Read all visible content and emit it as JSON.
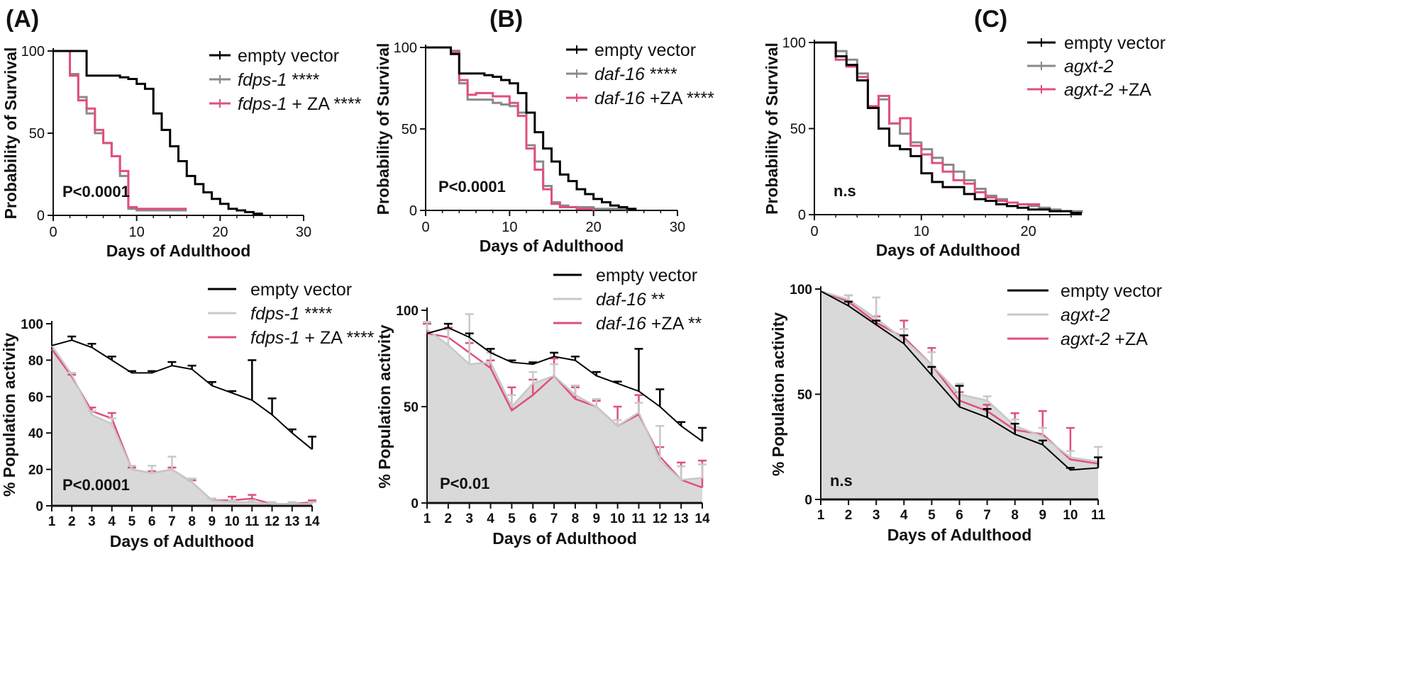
{
  "panels": {
    "A": {
      "label": "(A)"
    },
    "B": {
      "label": "(B)"
    },
    "C": {
      "label": "(C)"
    }
  },
  "colors": {
    "empty_vector": "#000000",
    "rnai": "#8a8a8a",
    "rnai_za": "#e0507a",
    "area_fill": "#d9d9d9",
    "rnai_light": "#c8c8c8"
  },
  "chart_data": [
    {
      "id": "A_top",
      "type": "line",
      "step": true,
      "xlabel": "Days of Adulthood",
      "ylabel": "Probability of Survival",
      "xlim": [
        0,
        30
      ],
      "ylim": [
        0,
        100
      ],
      "xticks": [
        0,
        10,
        20,
        30
      ],
      "yticks": [
        0,
        50,
        100
      ],
      "annotation": "P<0.0001",
      "legend_position": "top-right",
      "legend": [
        {
          "italic": "",
          "text": "empty vector"
        },
        {
          "italic": "fdps-1",
          "text": " ****"
        },
        {
          "italic": "fdps-1",
          "text": " + ZA ****"
        }
      ],
      "series": [
        {
          "x": [
            0,
            2,
            3,
            4,
            5,
            6,
            7,
            8,
            9,
            10,
            11,
            12,
            13,
            14,
            15,
            16,
            17,
            18,
            19,
            20,
            21,
            22,
            23,
            24,
            25
          ],
          "y": [
            100,
            100,
            100,
            85,
            85,
            85,
            85,
            84,
            83,
            80,
            77,
            62,
            52,
            42,
            33,
            24,
            19,
            14,
            10,
            7,
            4,
            3,
            2,
            1,
            0
          ]
        },
        {
          "x": [
            0,
            2,
            3,
            4,
            5,
            6,
            7,
            8,
            9,
            10,
            11,
            12,
            13,
            14,
            15,
            16
          ],
          "y": [
            100,
            86,
            72,
            62,
            50,
            44,
            36,
            24,
            4,
            3,
            3,
            3,
            3,
            3,
            3,
            3
          ]
        },
        {
          "x": [
            0,
            2,
            3,
            4,
            5,
            6,
            7,
            8,
            9,
            10,
            11,
            12,
            13,
            14,
            15,
            16
          ],
          "y": [
            100,
            85,
            70,
            65,
            52,
            44,
            36,
            27,
            5,
            4,
            4,
            4,
            4,
            4,
            4,
            4
          ]
        }
      ]
    },
    {
      "id": "B_top",
      "type": "line",
      "step": true,
      "xlabel": "Days of Adulthood",
      "ylabel": "Probability of Survival",
      "xlim": [
        0,
        30
      ],
      "ylim": [
        0,
        100
      ],
      "xticks": [
        0,
        10,
        20,
        30
      ],
      "yticks": [
        0,
        50,
        100
      ],
      "annotation": "P<0.0001",
      "legend_position": "top-right",
      "legend": [
        {
          "italic": "",
          "text": "empty vector"
        },
        {
          "italic": "daf-16",
          "text": " ****"
        },
        {
          "italic": "daf-16",
          "text": " +ZA ****"
        }
      ],
      "series": [
        {
          "x": [
            0,
            3,
            4,
            5,
            6,
            7,
            8,
            9,
            10,
            11,
            12,
            13,
            14,
            15,
            16,
            17,
            18,
            19,
            20,
            21,
            22,
            23,
            24,
            25
          ],
          "y": [
            100,
            96,
            84,
            84,
            84,
            83,
            82,
            80,
            78,
            72,
            60,
            48,
            38,
            30,
            22,
            18,
            13,
            10,
            7,
            5,
            3,
            2,
            1,
            0
          ]
        },
        {
          "x": [
            0,
            3,
            4,
            5,
            6,
            7,
            8,
            9,
            10,
            11,
            12,
            13,
            14,
            15,
            16,
            17,
            18,
            19,
            20,
            21,
            22,
            23,
            24
          ],
          "y": [
            100,
            98,
            78,
            68,
            68,
            68,
            66,
            65,
            64,
            60,
            40,
            30,
            15,
            5,
            3,
            2,
            2,
            2,
            1,
            1,
            1,
            1,
            0
          ]
        },
        {
          "x": [
            0,
            3,
            4,
            5,
            6,
            7,
            8,
            9,
            10,
            11,
            12,
            13,
            14,
            15,
            16,
            17,
            18,
            19,
            20
          ],
          "y": [
            100,
            97,
            80,
            71,
            72,
            72,
            70,
            70,
            66,
            58,
            38,
            25,
            13,
            4,
            2,
            2,
            1,
            1,
            0
          ]
        }
      ]
    },
    {
      "id": "C_top",
      "type": "line",
      "step": true,
      "xlabel": "Days of Adulthood",
      "ylabel": "Probability of Survival",
      "xlim": [
        0,
        25
      ],
      "ylim": [
        0,
        100
      ],
      "xticks": [
        0,
        10,
        20
      ],
      "yticks": [
        0,
        50,
        100
      ],
      "annotation": "n.s",
      "legend_position": "top-right",
      "legend": [
        {
          "italic": "",
          "text": "empty vector"
        },
        {
          "italic": "agxt-2",
          "text": ""
        },
        {
          "italic": "agxt-2",
          "text": " +ZA"
        }
      ],
      "series": [
        {
          "x": [
            0,
            2,
            3,
            4,
            5,
            6,
            7,
            8,
            9,
            10,
            11,
            12,
            13,
            14,
            15,
            16,
            17,
            18,
            19,
            20,
            21,
            22,
            23,
            24,
            25
          ],
          "y": [
            100,
            92,
            87,
            78,
            62,
            50,
            40,
            38,
            34,
            24,
            19,
            16,
            16,
            12,
            9,
            8,
            6,
            5,
            4,
            3,
            3,
            2,
            2,
            1,
            1
          ]
        },
        {
          "x": [
            0,
            2,
            3,
            4,
            5,
            6,
            7,
            8,
            9,
            10,
            11,
            12,
            13,
            14,
            15,
            16,
            17,
            18,
            19,
            20,
            21,
            22,
            23,
            24,
            25
          ],
          "y": [
            100,
            95,
            90,
            82,
            62,
            67,
            53,
            47,
            42,
            38,
            33,
            29,
            25,
            20,
            15,
            11,
            9,
            7,
            6,
            5,
            4,
            3,
            2,
            2,
            1
          ]
        },
        {
          "x": [
            0,
            2,
            3,
            4,
            5,
            6,
            7,
            8,
            9,
            10,
            11,
            12,
            13,
            14,
            15,
            16,
            17,
            18,
            19,
            20,
            21
          ],
          "y": [
            100,
            90,
            86,
            80,
            63,
            69,
            53,
            56,
            40,
            35,
            30,
            25,
            20,
            18,
            13,
            10,
            8,
            7,
            6,
            6,
            5
          ]
        }
      ]
    },
    {
      "id": "A_bottom",
      "type": "area",
      "xlabel": "Days of Adulthood",
      "ylabel": "% Population activity",
      "xlim": [
        1,
        14
      ],
      "ylim": [
        0,
        100
      ],
      "xticks": [
        1,
        2,
        3,
        4,
        5,
        6,
        7,
        8,
        9,
        10,
        11,
        12,
        13,
        14
      ],
      "yticks": [
        0,
        20,
        40,
        60,
        80,
        100
      ],
      "annotation": "P<0.0001",
      "legend_position": "top-right",
      "legend": [
        {
          "italic": "",
          "text": "empty vector"
        },
        {
          "italic": "fdps-1",
          "text": "  ****"
        },
        {
          "italic": "fdps-1",
          "text": " + ZA ****"
        }
      ],
      "series": [
        {
          "x": [
            1,
            2,
            3,
            4,
            5,
            6,
            7,
            8,
            9,
            10,
            11,
            12,
            13,
            14
          ],
          "y": [
            88,
            91,
            87,
            80,
            73,
            73,
            77,
            75,
            66,
            62,
            58,
            50,
            40,
            31
          ],
          "err": [
            0,
            2,
            2,
            2,
            1,
            1,
            2,
            2,
            2,
            1,
            22,
            9,
            2,
            7
          ]
        },
        {
          "x": [
            1,
            2,
            3,
            4,
            5,
            6,
            7,
            8,
            9,
            10,
            11,
            12,
            13,
            14
          ],
          "y": [
            88,
            72,
            50,
            45,
            20,
            18,
            20,
            13,
            3,
            2,
            2,
            1,
            1,
            1
          ],
          "err": [
            0,
            1,
            2,
            3,
            2,
            4,
            7,
            2,
            1,
            1,
            1,
            1,
            1,
            1
          ]
        },
        {
          "x": [
            1,
            2,
            3,
            4,
            5,
            6,
            7,
            8,
            9,
            10,
            11,
            12,
            13,
            14
          ],
          "y": [
            86,
            71,
            52,
            48,
            20,
            18,
            20,
            13,
            3,
            3,
            4,
            1,
            1,
            2
          ],
          "err": [
            0,
            1,
            2,
            3,
            1,
            1,
            1,
            1,
            1,
            2,
            2,
            1,
            1,
            1
          ]
        }
      ]
    },
    {
      "id": "B_bottom",
      "type": "area",
      "xlabel": "Days of Adulthood",
      "ylabel": "% Population activity",
      "xlim": [
        1,
        14
      ],
      "ylim": [
        0,
        100
      ],
      "xticks": [
        1,
        2,
        3,
        4,
        5,
        6,
        7,
        8,
        9,
        10,
        11,
        12,
        13,
        14
      ],
      "yticks": [
        0,
        50,
        100
      ],
      "annotation": "P<0.01",
      "legend_position": "top-right",
      "legend": [
        {
          "italic": "",
          "text": "empty vector"
        },
        {
          "italic": "daf-16",
          "text": "  **"
        },
        {
          "italic": "daf-16",
          "text": " +ZA **"
        }
      ],
      "series": [
        {
          "x": [
            1,
            2,
            3,
            4,
            5,
            6,
            7,
            8,
            9,
            10,
            11,
            12,
            13,
            14
          ],
          "y": [
            88,
            91,
            86,
            78,
            73,
            72,
            76,
            74,
            66,
            62,
            58,
            50,
            40,
            32
          ],
          "err": [
            0,
            2,
            2,
            2,
            1,
            1,
            2,
            2,
            2,
            1,
            22,
            9,
            2,
            7
          ]
        },
        {
          "x": [
            1,
            2,
            3,
            4,
            5,
            6,
            7,
            8,
            9,
            10,
            11,
            12,
            13,
            14
          ],
          "y": [
            90,
            82,
            72,
            73,
            50,
            62,
            66,
            56,
            50,
            40,
            47,
            22,
            12,
            13
          ],
          "err": [
            4,
            8,
            26,
            5,
            6,
            6,
            6,
            5,
            4,
            3,
            5,
            18,
            7,
            7
          ]
        },
        {
          "x": [
            1,
            2,
            3,
            4,
            5,
            6,
            7,
            8,
            9,
            10,
            11,
            12,
            13,
            14
          ],
          "y": [
            88,
            86,
            78,
            70,
            48,
            56,
            66,
            54,
            50,
            40,
            46,
            24,
            12,
            8
          ],
          "err": [
            5,
            5,
            5,
            4,
            12,
            8,
            9,
            6,
            3,
            10,
            10,
            5,
            9,
            14
          ]
        }
      ]
    },
    {
      "id": "C_bottom",
      "type": "area",
      "xlabel": "Days of Adulthood",
      "ylabel": "% Population activity",
      "xlim": [
        1,
        11
      ],
      "ylim": [
        0,
        100
      ],
      "xticks": [
        1,
        2,
        3,
        4,
        5,
        6,
        7,
        8,
        9,
        10,
        11
      ],
      "yticks": [
        0,
        50,
        100
      ],
      "annotation": "n.s",
      "legend_position": "top-right",
      "legend": [
        {
          "italic": "",
          "text": "empty vector"
        },
        {
          "italic": "agxt-2",
          "text": ""
        },
        {
          "italic": "agxt-2",
          "text": " +ZA"
        }
      ],
      "series": [
        {
          "x": [
            1,
            2,
            3,
            4,
            5,
            6,
            7,
            8,
            9,
            10,
            11
          ],
          "y": [
            99,
            92,
            83,
            74,
            59,
            44,
            39,
            31,
            26,
            14,
            15
          ],
          "err": [
            0,
            2,
            2,
            4,
            4,
            10,
            4,
            5,
            2,
            1,
            5
          ]
        },
        {
          "x": [
            1,
            2,
            3,
            4,
            5,
            6,
            7,
            8,
            9,
            10,
            11
          ],
          "y": [
            99,
            95,
            86,
            76,
            64,
            50,
            47,
            35,
            30,
            20,
            18
          ],
          "err": [
            0,
            2,
            10,
            5,
            6,
            5,
            2,
            3,
            4,
            3,
            7
          ]
        },
        {
          "x": [
            1,
            2,
            3,
            4,
            5,
            6,
            7,
            8,
            9,
            10,
            11
          ],
          "y": [
            99,
            94,
            84,
            77,
            64,
            47,
            42,
            33,
            31,
            19,
            17
          ],
          "err": [
            0,
            3,
            3,
            8,
            8,
            4,
            3,
            8,
            11,
            15,
            3
          ]
        }
      ]
    }
  ]
}
